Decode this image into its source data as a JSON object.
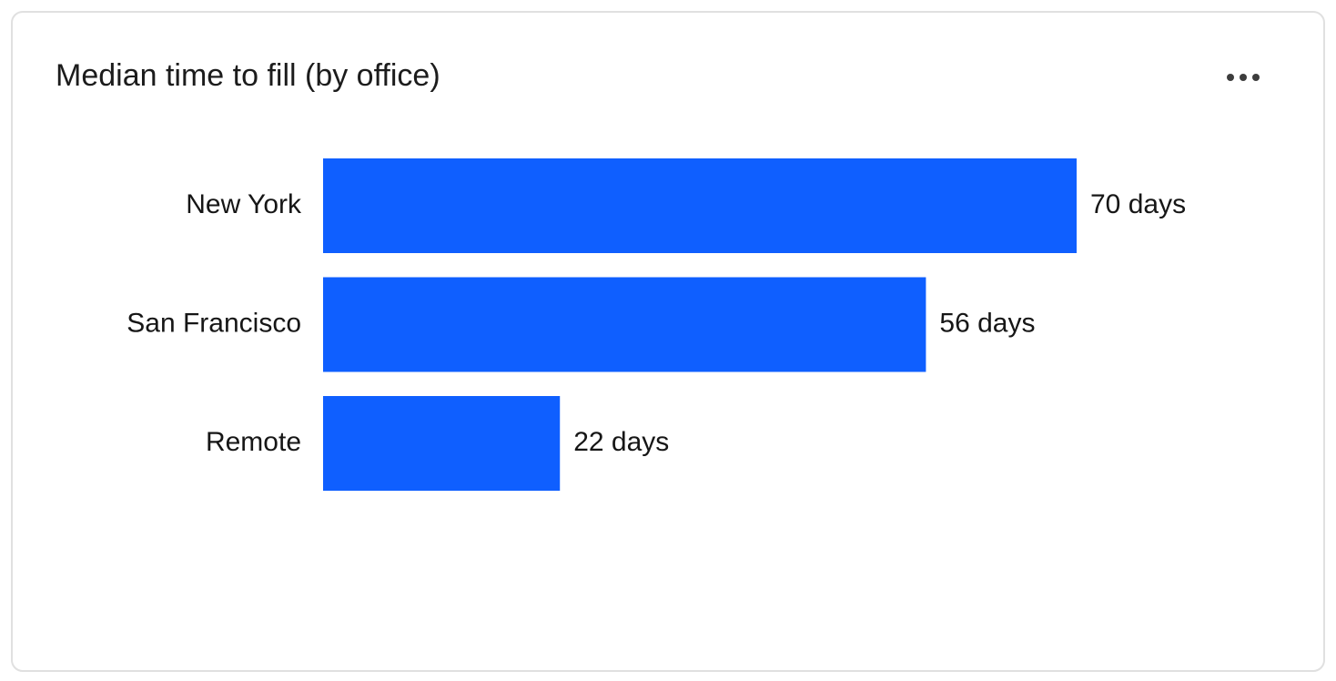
{
  "chart_data": {
    "type": "bar",
    "orientation": "horizontal",
    "title": "Median time to fill (by office)",
    "categories": [
      "New York",
      "San Francisco",
      "Remote"
    ],
    "values": [
      70,
      56,
      22
    ],
    "value_labels": [
      "70 days",
      "56 days",
      "22 days"
    ],
    "color": "#0f5fff"
  }
}
